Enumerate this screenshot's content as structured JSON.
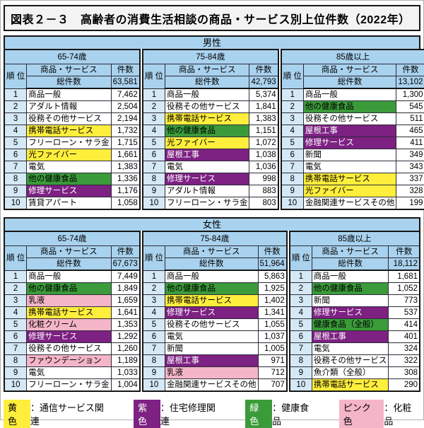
{
  "title": "図表２－３　高齢者の消費生活相談の商品・サービス別上位件数（2022年）",
  "colors": {
    "header_blue": "#a9d2ee",
    "rank_blue": "#d5e8f6",
    "yellow": "#ffee3c",
    "green": "#3b9b3a",
    "purple": "#7d2182",
    "pink": "#f5b5c8",
    "title_bg": "#f3f3f3",
    "border": "#161616"
  },
  "table_headers": {
    "rank": "順\n位",
    "product": "商品・サービス",
    "count": "件数",
    "total": "総件数"
  },
  "sections": [
    {
      "label": "男性",
      "groups": [
        {
          "age": "65-74歳",
          "total": "63,581",
          "rows": [
            {
              "rank": "1",
              "name": "商品一般",
              "count": "7,462",
              "cat": null
            },
            {
              "rank": "2",
              "name": "アダルト情報",
              "count": "2,504",
              "cat": null
            },
            {
              "rank": "3",
              "name": "役務その他サービス",
              "count": "2,194",
              "cat": null
            },
            {
              "rank": "4",
              "name": "携帯電話サービス",
              "count": "1,732",
              "cat": "yellow"
            },
            {
              "rank": "5",
              "name": "フリーローン・サラ金",
              "count": "1,715",
              "cat": null
            },
            {
              "rank": "6",
              "name": "光ファイバー",
              "count": "1,661",
              "cat": "yellow"
            },
            {
              "rank": "7",
              "name": "電気",
              "count": "1,383",
              "cat": null
            },
            {
              "rank": "8",
              "name": "他の健康食品",
              "count": "1,336",
              "cat": "green"
            },
            {
              "rank": "9",
              "name": "修理サービス",
              "count": "1,176",
              "cat": "purple"
            },
            {
              "rank": "10",
              "name": "賃貸アパート",
              "count": "1,058",
              "cat": null
            }
          ]
        },
        {
          "age": "75-84歳",
          "total": "42,793",
          "rows": [
            {
              "rank": "1",
              "name": "商品一般",
              "count": "5,374",
              "cat": null
            },
            {
              "rank": "2",
              "name": "役務その他サービス",
              "count": "1,841",
              "cat": null
            },
            {
              "rank": "3",
              "name": "携帯電話サービス",
              "count": "1,383",
              "cat": "yellow"
            },
            {
              "rank": "4",
              "name": "他の健康食品",
              "count": "1,151",
              "cat": "green"
            },
            {
              "rank": "5",
              "name": "光ファイバー",
              "count": "1,072",
              "cat": "yellow"
            },
            {
              "rank": "6",
              "name": "屋根工事",
              "count": "1,038",
              "cat": "purple"
            },
            {
              "rank": "7",
              "name": "電気",
              "count": "1,036",
              "cat": null
            },
            {
              "rank": "8",
              "name": "修理サービス",
              "count": "998",
              "cat": "purple"
            },
            {
              "rank": "9",
              "name": "アダルト情報",
              "count": "883",
              "cat": null
            },
            {
              "rank": "10",
              "name": "フリーローン・サラ金",
              "count": "803",
              "cat": null
            }
          ]
        },
        {
          "age": "85歳以上",
          "total": "13,102",
          "rows": [
            {
              "rank": "1",
              "name": "商品一般",
              "count": "1,300",
              "cat": null
            },
            {
              "rank": "2",
              "name": "他の健康食品",
              "count": "545",
              "cat": "green"
            },
            {
              "rank": "3",
              "name": "役務その他サービス",
              "count": "511",
              "cat": null
            },
            {
              "rank": "4",
              "name": "屋根工事",
              "count": "465",
              "cat": "purple"
            },
            {
              "rank": "5",
              "name": "修理サービス",
              "count": "411",
              "cat": "purple"
            },
            {
              "rank": "6",
              "name": "新聞",
              "count": "349",
              "cat": null
            },
            {
              "rank": "7",
              "name": "電気",
              "count": "343",
              "cat": null
            },
            {
              "rank": "8",
              "name": "携帯電話サービス",
              "count": "337",
              "cat": "yellow"
            },
            {
              "rank": "9",
              "name": "光ファイバー",
              "count": "328",
              "cat": "yellow"
            },
            {
              "rank": "10",
              "name": "金融関連サービスその他",
              "count": "199",
              "cat": null
            }
          ]
        }
      ]
    },
    {
      "label": "女性",
      "groups": [
        {
          "age": "65-74歳",
          "total": "67,673",
          "rows": [
            {
              "rank": "1",
              "name": "商品一般",
              "count": "7,449",
              "cat": null
            },
            {
              "rank": "2",
              "name": "他の健康食品",
              "count": "1,849",
              "cat": "green"
            },
            {
              "rank": "3",
              "name": "乳液",
              "count": "1,659",
              "cat": "pink"
            },
            {
              "rank": "4",
              "name": "携帯電話サービス",
              "count": "1,641",
              "cat": "yellow"
            },
            {
              "rank": "5",
              "name": "化粧クリーム",
              "count": "1,353",
              "cat": "pink"
            },
            {
              "rank": "6",
              "name": "修理サービス",
              "count": "1,292",
              "cat": "purple"
            },
            {
              "rank": "7",
              "name": "役務その他サービス",
              "count": "1,260",
              "cat": null
            },
            {
              "rank": "8",
              "name": "ファウンデーション",
              "count": "1,189",
              "cat": "pink"
            },
            {
              "rank": "9",
              "name": "電気",
              "count": "1,033",
              "cat": null
            },
            {
              "rank": "10",
              "name": "フリーローン・サラ金",
              "count": "1,004",
              "cat": null
            }
          ]
        },
        {
          "age": "75-84歳",
          "total": "51,964",
          "rows": [
            {
              "rank": "1",
              "name": "商品一般",
              "count": "5,863",
              "cat": null
            },
            {
              "rank": "2",
              "name": "他の健康食品",
              "count": "1,925",
              "cat": "green"
            },
            {
              "rank": "3",
              "name": "携帯電話サービス",
              "count": "1,402",
              "cat": "yellow"
            },
            {
              "rank": "4",
              "name": "修理サービス",
              "count": "1,341",
              "cat": "purple"
            },
            {
              "rank": "5",
              "name": "役務その他サービス",
              "count": "1,055",
              "cat": null
            },
            {
              "rank": "6",
              "name": "電気",
              "count": "1,037",
              "cat": null
            },
            {
              "rank": "7",
              "name": "新聞",
              "count": "1,005",
              "cat": null
            },
            {
              "rank": "8",
              "name": "屋根工事",
              "count": "971",
              "cat": "purple"
            },
            {
              "rank": "9",
              "name": "乳液",
              "count": "712",
              "cat": "pink"
            },
            {
              "rank": "10",
              "name": "金融関連サービスその他",
              "count": "707",
              "cat": null
            }
          ]
        },
        {
          "age": "85歳以上",
          "total": "18,112",
          "rows": [
            {
              "rank": "1",
              "name": "商品一般",
              "count": "1,681",
              "cat": null
            },
            {
              "rank": "2",
              "name": "他の健康食品",
              "count": "1,052",
              "cat": "green"
            },
            {
              "rank": "3",
              "name": "新聞",
              "count": "773",
              "cat": null
            },
            {
              "rank": "4",
              "name": "修理サービス",
              "count": "537",
              "cat": "purple"
            },
            {
              "rank": "5",
              "name": "健康食品（全般）",
              "count": "414",
              "cat": "green"
            },
            {
              "rank": "6",
              "name": "屋根工事",
              "count": "401",
              "cat": "purple"
            },
            {
              "rank": "7",
              "name": "電気",
              "count": "324",
              "cat": null
            },
            {
              "rank": "8",
              "name": "役務その他サービス",
              "count": "322",
              "cat": null
            },
            {
              "rank": "9",
              "name": "魚介類（全般）",
              "count": "308",
              "cat": null
            },
            {
              "rank": "10",
              "name": "携帯電話サービス",
              "count": "290",
              "cat": "yellow"
            }
          ]
        }
      ]
    }
  ],
  "legend": [
    {
      "swatch": "黄色",
      "label": "：通信サービス関連",
      "cat": "yellow"
    },
    {
      "swatch": "紫色",
      "label": "：住宅修理関連",
      "cat": "purple"
    },
    {
      "swatch": "緑色",
      "label": "：健康食品",
      "cat": "green"
    },
    {
      "swatch": "ピンク色",
      "label": "：化粧品",
      "cat": "pink"
    }
  ]
}
